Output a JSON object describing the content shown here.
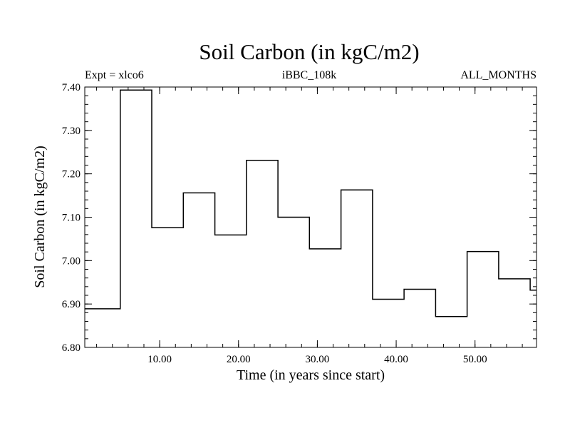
{
  "chart_data": {
    "type": "line",
    "step": true,
    "title": "Soil Carbon (in kgC/m2)",
    "subtitle_left": "Expt = xlco6",
    "subtitle_center": "iBBC_108k",
    "subtitle_right": "ALL_MONTHS",
    "xlabel": "Time (in years since start)",
    "ylabel": "Soil Carbon (in kgC/m2)",
    "xlim": [
      0.5,
      57.8
    ],
    "ylim": [
      6.8,
      7.4
    ],
    "x_ticks": [
      10,
      20,
      30,
      40,
      50
    ],
    "x_tick_labels": [
      "10.00",
      "20.00",
      "30.00",
      "40.00",
      "50.00"
    ],
    "y_ticks": [
      6.8,
      6.9,
      7.0,
      7.1,
      7.2,
      7.3,
      7.4
    ],
    "y_tick_labels": [
      "6.80",
      "6.90",
      "7.00",
      "7.10",
      "7.20",
      "7.30",
      "7.40"
    ],
    "grid": false,
    "legend": "none",
    "series": [
      {
        "x": [
          0.5,
          5,
          9,
          13,
          17,
          21,
          25,
          29,
          33,
          37,
          41,
          45,
          49,
          53,
          57
        ],
        "y": [
          6.889,
          7.393,
          7.076,
          7.156,
          7.059,
          7.231,
          7.1,
          7.027,
          7.163,
          6.911,
          6.934,
          6.871,
          7.021,
          6.958,
          6.932
        ],
        "x_end": 57.8,
        "color": "#000000"
      }
    ]
  }
}
